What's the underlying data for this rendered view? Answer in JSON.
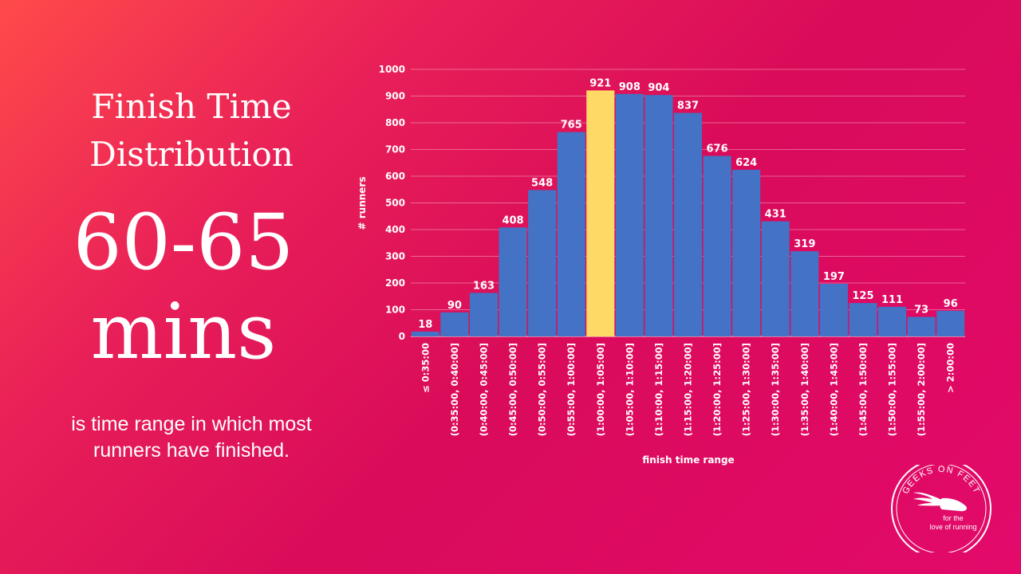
{
  "slide": {
    "title_line1": "Finish Time",
    "title_line2": "Distribution",
    "highlight_line1": "60-65",
    "highlight_line2": "mins",
    "caption_line1": "is time range in  which most",
    "caption_line2": "runners have finished."
  },
  "logo": {
    "arc_text": "GEEKS ON FEET",
    "tagline_line1": "for the",
    "tagline_line2": "love of running",
    "icon": "winged-shoe-icon"
  },
  "colors": {
    "bar": "#4472c4",
    "highlight_bar": "#ffd966",
    "gridline": "#ffffff"
  },
  "chart_data": {
    "type": "bar",
    "title": "",
    "xlabel": "finish time range",
    "ylabel": "# runners",
    "ylim": [
      0,
      1000
    ],
    "yticks": [
      0,
      100,
      200,
      300,
      400,
      500,
      600,
      700,
      800,
      900,
      1000
    ],
    "grid": true,
    "legend": "none",
    "highlight_category": "(1:00:00, 1:05:00]",
    "categories": [
      "≤ 0:35:00",
      "(0:35:00, 0:40:00]",
      "(0:40:00, 0:45:00]",
      "(0:45:00, 0:50:00]",
      "(0:50:00, 0:55:00]",
      "(0:55:00, 1:00:00]",
      "(1:00:00, 1:05:00]",
      "(1:05:00, 1:10:00]",
      "(1:10:00, 1:15:00]",
      "(1:15:00, 1:20:00]",
      "(1:20:00, 1:25:00]",
      "(1:25:00, 1:30:00]",
      "(1:30:00, 1:35:00]",
      "(1:35:00, 1:40:00]",
      "(1:40:00, 1:45:00]",
      "(1:45:00, 1:50:00]",
      "(1:50:00, 1:55:00]",
      "(1:55:00, 2:00:00]",
      "> 2:00:00"
    ],
    "values": [
      18,
      90,
      163,
      408,
      548,
      765,
      921,
      908,
      904,
      837,
      676,
      624,
      431,
      319,
      197,
      125,
      111,
      73,
      96
    ]
  }
}
